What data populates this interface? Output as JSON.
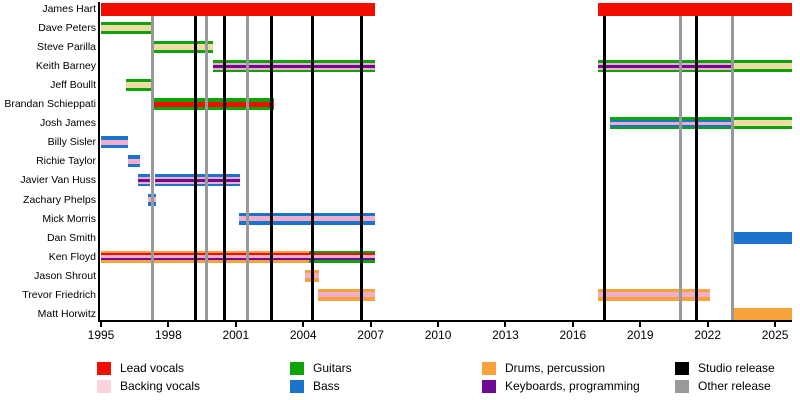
{
  "colors": {
    "red": "#F10D00",
    "pink": "#F1AECB",
    "pink_light": "#FAD2DC",
    "green": "#0CA408",
    "blue": "#1B74CC",
    "orange": "#F9A23B",
    "purple": "#6F0B92",
    "tan": "#EFDBA6",
    "black": "#000000",
    "gray": "#999999"
  },
  "chart_data": {
    "type": "timeline",
    "title": "",
    "x_axis": {
      "ticks": [
        1995,
        1998,
        2001,
        2004,
        2007,
        2010,
        2013,
        2016,
        2019,
        2022,
        2025
      ],
      "range": [
        1995,
        2025.8
      ]
    },
    "members": [
      {
        "name": "James Hart",
        "front": true,
        "segments": [
          {
            "start": 1995.0,
            "end": 2007.2,
            "stripes": [
              [
                "red",
                13
              ]
            ]
          },
          {
            "start": 2017.1,
            "end": 2025.75,
            "stripes": [
              [
                "red",
                13
              ]
            ]
          }
        ]
      },
      {
        "name": "Dave Peters",
        "segments": [
          {
            "start": 1995.0,
            "end": 1997.3,
            "stripes": [
              [
                "green",
                3
              ],
              [
                "tan",
                6
              ],
              [
                "green",
                3
              ]
            ]
          }
        ]
      },
      {
        "name": "Steve Parilla",
        "segments": [
          {
            "start": 1997.3,
            "end": 2000.0,
            "stripes": [
              [
                "green",
                3
              ],
              [
                "tan",
                6
              ],
              [
                "green",
                3
              ]
            ]
          }
        ]
      },
      {
        "name": "Keith Barney",
        "segments": [
          {
            "start": 2000.0,
            "end": 2007.2,
            "stripes": [
              [
                "green",
                2.5
              ],
              [
                "pink",
                2
              ],
              [
                "purple",
                3
              ],
              [
                "pink",
                2
              ],
              [
                "green",
                2.5
              ]
            ]
          },
          {
            "start": 2017.1,
            "end": 2023.1,
            "stripes": [
              [
                "green",
                2.5
              ],
              [
                "pink",
                2
              ],
              [
                "purple",
                3
              ],
              [
                "pink",
                2
              ],
              [
                "green",
                2.5
              ]
            ]
          },
          {
            "start": 2023.1,
            "end": 2025.75,
            "stripes": [
              [
                "green",
                3
              ],
              [
                "tan",
                6
              ],
              [
                "green",
                3
              ]
            ]
          }
        ]
      },
      {
        "name": "Jeff Boullt",
        "segments": [
          {
            "start": 1996.1,
            "end": 1997.3,
            "stripes": [
              [
                "green",
                3
              ],
              [
                "tan",
                6
              ],
              [
                "green",
                3
              ]
            ]
          }
        ]
      },
      {
        "name": "Brandan Schieppati",
        "segments": [
          {
            "start": 1997.3,
            "end": 2002.7,
            "stripes": [
              [
                "green",
                3.5
              ],
              [
                "red",
                5
              ],
              [
                "green",
                3.5
              ]
            ]
          }
        ]
      },
      {
        "name": "Josh James",
        "segments": [
          {
            "start": 2017.65,
            "end": 2023.1,
            "stripes": [
              [
                "green",
                2.5
              ],
              [
                "blue",
                2
              ],
              [
                "pink",
                3
              ],
              [
                "blue",
                2
              ],
              [
                "green",
                2.5
              ]
            ]
          },
          {
            "start": 2023.1,
            "end": 2025.75,
            "stripes": [
              [
                "green",
                3
              ],
              [
                "tan",
                6
              ],
              [
                "green",
                3
              ]
            ]
          }
        ]
      },
      {
        "name": "Billy Sisler",
        "segments": [
          {
            "start": 1995.0,
            "end": 1996.2,
            "stripes": [
              [
                "blue",
                3.5
              ],
              [
                "pink",
                5
              ],
              [
                "blue",
                3.5
              ]
            ]
          }
        ]
      },
      {
        "name": "Richie Taylor",
        "segments": [
          {
            "start": 1996.2,
            "end": 1996.75,
            "stripes": [
              [
                "blue",
                3.5
              ],
              [
                "pink",
                5
              ],
              [
                "blue",
                3.5
              ]
            ]
          }
        ]
      },
      {
        "name": "Javier Van Huss",
        "segments": [
          {
            "start": 1996.65,
            "end": 1997.2,
            "stripes": [
              [
                "blue",
                2.5
              ],
              [
                "pink",
                2
              ],
              [
                "purple",
                3
              ],
              [
                "pink",
                2
              ],
              [
                "blue",
                2.5
              ]
            ]
          },
          {
            "start": 1997.4,
            "end": 2001.2,
            "stripes": [
              [
                "blue",
                2.5
              ],
              [
                "pink",
                2
              ],
              [
                "purple",
                3
              ],
              [
                "pink",
                2
              ],
              [
                "blue",
                2.5
              ]
            ]
          }
        ]
      },
      {
        "name": "Zachary Phelps",
        "segments": [
          {
            "start": 1997.1,
            "end": 1997.45,
            "stripes": [
              [
                "blue",
                3.5
              ],
              [
                "pink",
                5
              ],
              [
                "blue",
                3.5
              ]
            ]
          }
        ]
      },
      {
        "name": "Mick Morris",
        "segments": [
          {
            "start": 2001.15,
            "end": 2007.2,
            "stripes": [
              [
                "blue",
                3.5
              ],
              [
                "pink",
                5
              ],
              [
                "blue",
                3.5
              ]
            ]
          }
        ]
      },
      {
        "name": "Dan Smith",
        "segments": [
          {
            "start": 2023.1,
            "end": 2025.75,
            "stripes": [
              [
                "blue",
                12
              ]
            ]
          }
        ]
      },
      {
        "name": "Ken Floyd",
        "segments": [
          {
            "start": 1995.0,
            "end": 2004.25,
            "stripes": [
              [
                "orange",
                2.5
              ],
              [
                "red",
                2
              ],
              [
                "pink",
                3
              ],
              [
                "purple",
                2
              ],
              [
                "orange",
                2.5
              ]
            ]
          },
          {
            "start": 2004.25,
            "end": 2007.2,
            "stripes": [
              [
                "green",
                2.5
              ],
              [
                "red",
                2
              ],
              [
                "pink",
                3
              ],
              [
                "purple",
                2
              ],
              [
                "green",
                2.5
              ]
            ]
          }
        ]
      },
      {
        "name": "Jason Shrout",
        "segments": [
          {
            "start": 2004.1,
            "end": 2004.7,
            "stripes": [
              [
                "orange",
                3.5
              ],
              [
                "pink",
                5
              ],
              [
                "orange",
                3.5
              ]
            ]
          }
        ]
      },
      {
        "name": "Trevor Friedrich",
        "segments": [
          {
            "start": 2004.65,
            "end": 2007.2,
            "stripes": [
              [
                "orange",
                3.5
              ],
              [
                "pink",
                5
              ],
              [
                "orange",
                3.5
              ]
            ]
          },
          {
            "start": 2017.1,
            "end": 2022.1,
            "stripes": [
              [
                "orange",
                3.5
              ],
              [
                "pink",
                5
              ],
              [
                "orange",
                3.5
              ]
            ]
          }
        ]
      },
      {
        "name": "Matt Horwitz",
        "segments": [
          {
            "start": 2023.1,
            "end": 2025.75,
            "stripes": [
              [
                "orange",
                12
              ]
            ]
          }
        ]
      }
    ],
    "releases": {
      "studio": [
        1999.2,
        2000.5,
        2002.6,
        2004.4,
        2006.6,
        2017.4,
        2021.5
      ],
      "other": [
        1997.3,
        1999.7,
        2001.5,
        2020.8,
        2023.1
      ]
    },
    "legend": {
      "items": [
        {
          "label": "Lead vocals",
          "color": "red",
          "col": 0,
          "row": 0
        },
        {
          "label": "Backing vocals",
          "color": "pink_light",
          "col": 0,
          "row": 1
        },
        {
          "label": "Guitars",
          "color": "green",
          "col": 1,
          "row": 0
        },
        {
          "label": "Bass",
          "color": "blue",
          "col": 1,
          "row": 1
        },
        {
          "label": "Drums, percussion",
          "color": "orange",
          "col": 2,
          "row": 0
        },
        {
          "label": "Keyboards, programming",
          "color": "purple",
          "col": 2,
          "row": 1
        },
        {
          "label": "Studio release",
          "color": "black",
          "col": 3,
          "row": 0
        },
        {
          "label": "Other release",
          "color": "gray",
          "col": 3,
          "row": 1
        }
      ]
    }
  }
}
